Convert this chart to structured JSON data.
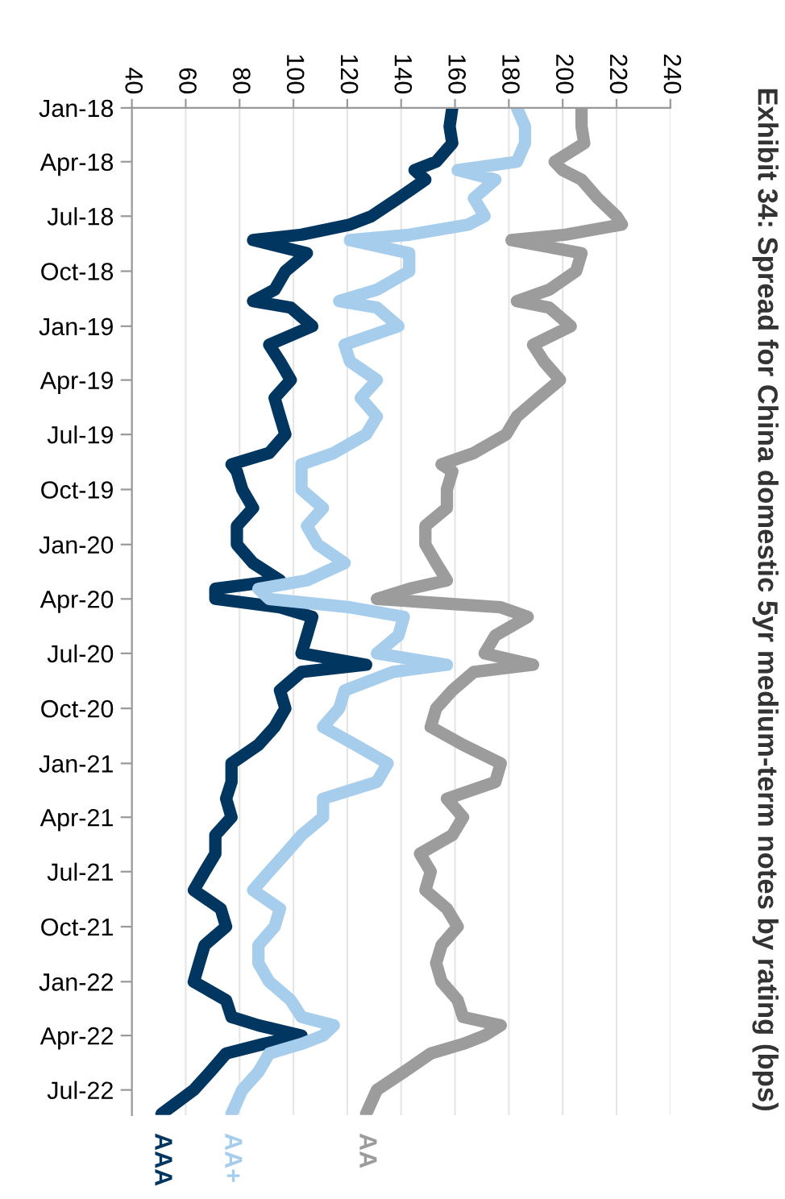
{
  "chart_data": {
    "type": "line",
    "title": "Exhibit 34: Spread for China domestic 5yr medium-term notes by rating (bps)",
    "x": [
      "2018-01-01",
      "2018-02-01",
      "2018-03-01",
      "2018-04-01",
      "2018-04-15",
      "2018-05-01",
      "2018-06-01",
      "2018-07-01",
      "2018-07-15",
      "2018-08-01",
      "2018-08-10",
      "2018-09-01",
      "2018-10-01",
      "2018-11-01",
      "2018-11-20",
      "2018-12-01",
      "2019-01-01",
      "2019-02-01",
      "2019-03-01",
      "2019-04-01",
      "2019-05-01",
      "2019-06-01",
      "2019-07-01",
      "2019-08-01",
      "2019-08-20",
      "2019-09-01",
      "2019-10-01",
      "2019-11-01",
      "2019-12-01",
      "2020-01-01",
      "2020-02-01",
      "2020-03-01",
      "2020-03-15",
      "2020-04-01",
      "2020-04-15",
      "2020-05-01",
      "2020-06-01",
      "2020-07-01",
      "2020-07-20",
      "2020-08-01",
      "2020-09-01",
      "2020-10-01",
      "2020-11-01",
      "2020-12-01",
      "2021-01-01",
      "2021-02-01",
      "2021-03-01",
      "2021-04-01",
      "2021-05-01",
      "2021-06-01",
      "2021-07-01",
      "2021-08-01",
      "2021-09-01",
      "2021-10-01",
      "2021-11-01",
      "2021-12-01",
      "2022-01-01",
      "2022-02-01",
      "2022-03-01",
      "2022-03-15",
      "2022-04-01",
      "2022-04-15",
      "2022-05-01",
      "2022-06-01",
      "2022-07-01",
      "2022-08-10"
    ],
    "series": [
      {
        "name": "AAA",
        "color": "#003660",
        "values": [
          159,
          158,
          159,
          153,
          145,
          149,
          139,
          129,
          121,
          103,
          85,
          105,
          97,
          93,
          85,
          99,
          107,
          91,
          95,
          99,
          93,
          95,
          97,
          91,
          77,
          79,
          81,
          85,
          79,
          79,
          85,
          95,
          71,
          71,
          95,
          107,
          105,
          103,
          127,
          103,
          95,
          97,
          93,
          87,
          77,
          77,
          75,
          77,
          71,
          71,
          67,
          63,
          73,
          75,
          67,
          65,
          63,
          75,
          77,
          87,
          103,
          89,
          75,
          69,
          63,
          51
        ]
      },
      {
        "name": "AA+",
        "color": "#a6cdec",
        "values": [
          183,
          186,
          186,
          183,
          161,
          175,
          167,
          171,
          165,
          143,
          121,
          143,
          143,
          131,
          117,
          131,
          139,
          119,
          121,
          131,
          125,
          131,
          127,
          115,
          103,
          103,
          103,
          111,
          105,
          109,
          119,
          105,
          87,
          91,
          121,
          141,
          139,
          131,
          157,
          137,
          119,
          117,
          111,
          123,
          135,
          131,
          111,
          111,
          103,
          97,
          91,
          85,
          95,
          93,
          87,
          87,
          91,
          99,
          103,
          115,
          111,
          103,
          91,
          87,
          81,
          77
        ]
      },
      {
        "name": "AA",
        "color": "#9c9c9c",
        "values": [
          207,
          207,
          208,
          197,
          200,
          207,
          213,
          220,
          222,
          201,
          181,
          207,
          205,
          195,
          183,
          195,
          203,
          189,
          193,
          199,
          191,
          183,
          179,
          167,
          155,
          159,
          157,
          157,
          149,
          149,
          153,
          157,
          143,
          131,
          177,
          187,
          175,
          171,
          189,
          167,
          159,
          153,
          151,
          163,
          177,
          175,
          157,
          163,
          159,
          147,
          151,
          149,
          157,
          161,
          155,
          153,
          155,
          161,
          163,
          177,
          171,
          163,
          151,
          141,
          131,
          127
        ]
      }
    ],
    "orientation": "horizontal",
    "ylim": [
      "2022-08-12",
      "2018-01-01"
    ],
    "yticks": [
      {
        "value": "2018-01-01",
        "label": "Jan-18"
      },
      {
        "value": "2018-04-01",
        "label": "Apr-18"
      },
      {
        "value": "2018-07-01",
        "label": "Jul-18"
      },
      {
        "value": "2018-10-01",
        "label": "Oct-18"
      },
      {
        "value": "2019-01-01",
        "label": "Jan-19"
      },
      {
        "value": "2019-04-01",
        "label": "Apr-19"
      },
      {
        "value": "2019-07-01",
        "label": "Jul-19"
      },
      {
        "value": "2019-10-01",
        "label": "Oct-19"
      },
      {
        "value": "2020-01-01",
        "label": "Jan-20"
      },
      {
        "value": "2020-04-01",
        "label": "Apr-20"
      },
      {
        "value": "2020-07-01",
        "label": "Jul-20"
      },
      {
        "value": "2020-10-01",
        "label": "Oct-20"
      },
      {
        "value": "2021-01-01",
        "label": "Jan-21"
      },
      {
        "value": "2021-04-01",
        "label": "Apr-21"
      },
      {
        "value": "2021-07-01",
        "label": "Jul-21"
      },
      {
        "value": "2021-10-01",
        "label": "Oct-21"
      },
      {
        "value": "2022-01-01",
        "label": "Jan-22"
      },
      {
        "value": "2022-04-01",
        "label": "Apr-22"
      },
      {
        "value": "2022-07-01",
        "label": "Jul-22"
      }
    ],
    "xlim": [
      40,
      240
    ],
    "xticks": [
      40,
      60,
      80,
      100,
      120,
      140,
      160,
      180,
      200,
      220,
      240
    ],
    "grid": "x",
    "legend": false,
    "marker": "none",
    "line_style": "solid"
  }
}
